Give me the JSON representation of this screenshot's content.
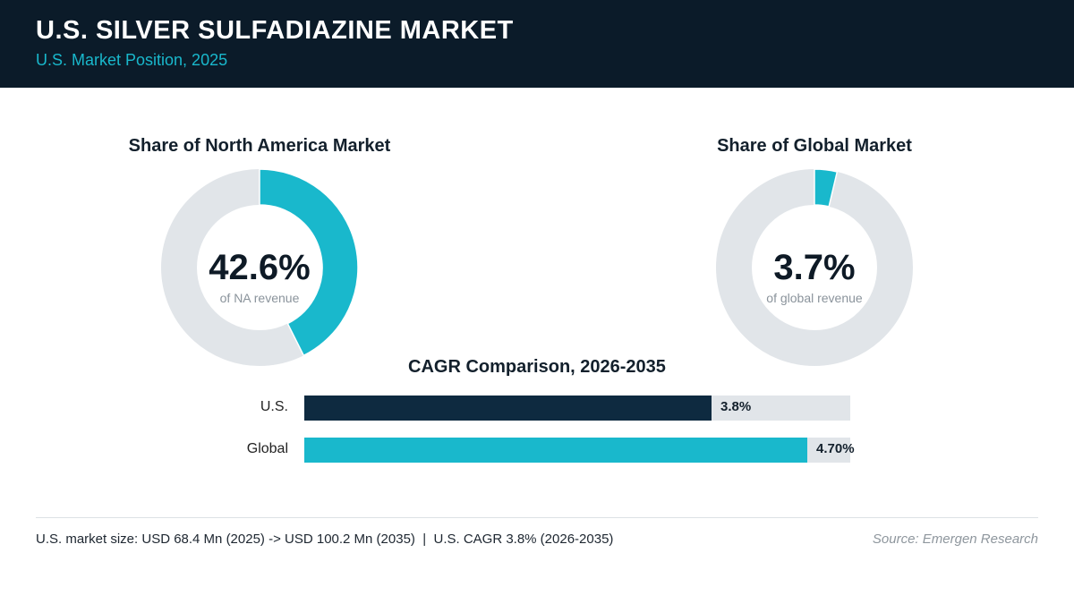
{
  "header": {
    "title": "U.S. SILVER SULFADIAZINE MARKET",
    "subtitle": "U.S. Market Position, 2025"
  },
  "colors": {
    "header_bg": "#0b1b29",
    "accent": "#19b8cc",
    "dark_bar": "#0e2a40",
    "track": "#e1e5e9"
  },
  "chart_data": [
    {
      "type": "pie",
      "title": "Share of North America Market",
      "value": 42.6,
      "value_label": "42.6%",
      "caption": "of NA revenue"
    },
    {
      "type": "pie",
      "title": "Share of Global Market",
      "value": 3.7,
      "value_label": "3.7%",
      "caption": "of global revenue"
    },
    {
      "type": "bar",
      "title": "CAGR Comparison, 2026-2035",
      "categories": [
        "U.S.",
        "Global"
      ],
      "values": [
        3.8,
        4.7
      ],
      "value_labels": [
        "3.8%",
        "4.70%"
      ],
      "xlim": [
        0,
        5.1
      ]
    }
  ],
  "footer": {
    "note": "U.S. market size: USD 68.4 Mn (2025) -> USD 100.2 Mn (2035)  |  U.S. CAGR 3.8% (2026-2035)",
    "source": "Source: Emergen Research"
  }
}
